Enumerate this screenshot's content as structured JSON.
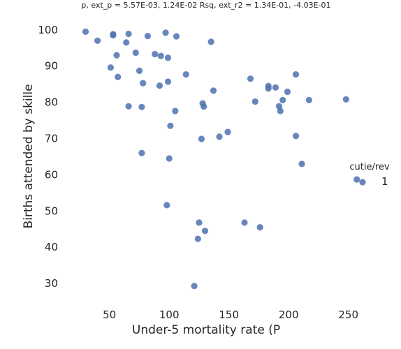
{
  "chart_data": {
    "type": "scatter",
    "title": "p, ext_p = 5.57E-03, 1.24E-02 Rsq, ext_r2 = 1.34E-01, -4.03E-01",
    "xlabel": "Under-5 mortality rate (P",
    "ylabel": "Births attended by skille",
    "xlim": [
      18,
      287
    ],
    "ylim": [
      25,
      104
    ],
    "xticks": [
      50,
      100,
      150,
      200,
      250
    ],
    "yticks": [
      30,
      40,
      50,
      60,
      70,
      80,
      90,
      100
    ],
    "grid": false,
    "legend": {
      "title": "cutie/rev",
      "entries": [
        "1"
      ],
      "placement": "right"
    },
    "colors": {
      "points": "#4c72b0"
    },
    "series": [
      {
        "x": [
          30,
          53,
          53,
          66,
          64,
          82,
          97,
          106,
          135,
          40,
          56,
          72,
          88,
          93,
          99,
          51,
          75,
          57,
          78,
          92,
          99,
          114,
          137,
          168,
          183,
          183,
          189,
          199,
          206,
          66,
          77,
          105,
          128,
          129,
          172,
          192,
          195,
          193,
          217,
          248,
          101,
          149,
          142,
          127,
          206,
          77,
          100,
          211,
          257,
          98,
          125,
          130,
          163,
          176,
          124,
          121
        ],
        "y": [
          99.5,
          98.8,
          98.5,
          98.9,
          96.5,
          98.3,
          99.2,
          98.2,
          96.7,
          97.0,
          93.0,
          93.7,
          93.3,
          92.8,
          92.3,
          89.6,
          88.7,
          87.0,
          85.3,
          84.6,
          85.7,
          87.7,
          83.2,
          86.5,
          84.5,
          83.8,
          84.1,
          82.9,
          87.7,
          78.9,
          78.7,
          77.6,
          79.7,
          78.8,
          80.2,
          78.9,
          80.6,
          77.6,
          80.6,
          80.8,
          73.5,
          71.8,
          70.5,
          69.9,
          70.7,
          66.0,
          64.5,
          63.0,
          58.7,
          51.6,
          46.8,
          44.5,
          46.8,
          45.5,
          42.3,
          29.3
        ]
      }
    ]
  }
}
